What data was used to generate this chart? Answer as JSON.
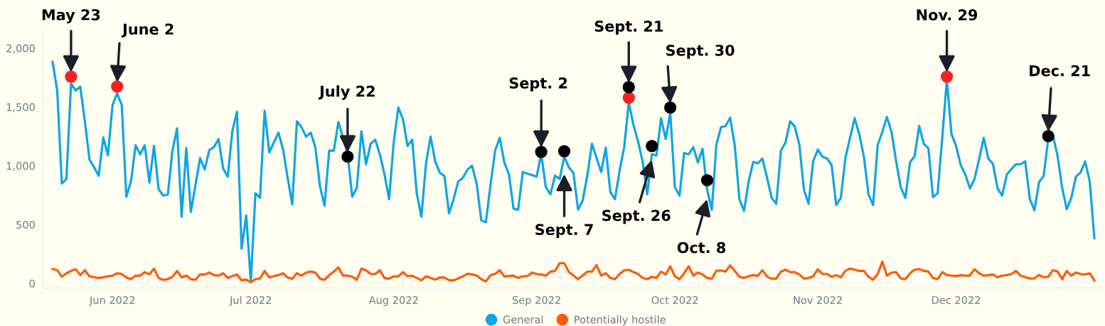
{
  "chart_data": {
    "type": "line",
    "x": [
      "2022-05-19",
      "2022-05-20",
      "2022-05-21",
      "2022-05-22",
      "2022-05-23",
      "2022-05-24",
      "2022-05-25",
      "2022-05-26",
      "2022-05-27",
      "2022-05-28",
      "2022-05-29",
      "2022-05-30",
      "2022-05-31",
      "2022-06-01",
      "2022-06-02",
      "2022-06-03",
      "2022-06-04",
      "2022-06-05",
      "2022-06-06",
      "2022-06-07",
      "2022-06-08",
      "2022-06-09",
      "2022-06-10",
      "2022-06-11",
      "2022-06-12",
      "2022-06-13",
      "2022-06-14",
      "2022-06-15",
      "2022-06-16",
      "2022-06-17",
      "2022-06-18",
      "2022-06-19",
      "2022-06-20",
      "2022-06-21",
      "2022-06-22",
      "2022-06-23",
      "2022-06-24",
      "2022-06-25",
      "2022-06-26",
      "2022-06-27",
      "2022-06-28",
      "2022-06-29",
      "2022-06-30",
      "2022-07-01",
      "2022-07-02",
      "2022-07-03",
      "2022-07-04",
      "2022-07-05",
      "2022-07-06",
      "2022-07-07",
      "2022-07-08",
      "2022-07-09",
      "2022-07-10",
      "2022-07-11",
      "2022-07-12",
      "2022-07-13",
      "2022-07-14",
      "2022-07-15",
      "2022-07-16",
      "2022-07-17",
      "2022-07-18",
      "2022-07-19",
      "2022-07-20",
      "2022-07-21",
      "2022-07-22",
      "2022-07-23",
      "2022-07-24",
      "2022-07-25",
      "2022-07-26",
      "2022-07-27",
      "2022-07-28",
      "2022-07-29",
      "2022-07-30",
      "2022-07-31",
      "2022-08-01",
      "2022-08-02",
      "2022-08-03",
      "2022-08-04",
      "2022-08-05",
      "2022-08-06",
      "2022-08-07",
      "2022-08-08",
      "2022-08-09",
      "2022-08-10",
      "2022-08-11",
      "2022-08-12",
      "2022-08-13",
      "2022-08-14",
      "2022-08-15",
      "2022-08-16",
      "2022-08-17",
      "2022-08-18",
      "2022-08-19",
      "2022-08-20",
      "2022-08-21",
      "2022-08-22",
      "2022-08-23",
      "2022-08-24",
      "2022-08-25",
      "2022-08-26",
      "2022-08-27",
      "2022-08-28",
      "2022-08-29",
      "2022-08-30",
      "2022-08-31",
      "2022-09-01",
      "2022-09-02",
      "2022-09-03",
      "2022-09-04",
      "2022-09-05",
      "2022-09-06",
      "2022-09-07",
      "2022-09-08",
      "2022-09-09",
      "2022-09-10",
      "2022-09-11",
      "2022-09-12",
      "2022-09-13",
      "2022-09-14",
      "2022-09-15",
      "2022-09-16",
      "2022-09-17",
      "2022-09-18",
      "2022-09-19",
      "2022-09-20",
      "2022-09-21",
      "2022-09-22",
      "2022-09-23",
      "2022-09-24",
      "2022-09-25",
      "2022-09-26",
      "2022-09-27",
      "2022-09-28",
      "2022-09-29",
      "2022-09-30",
      "2022-10-01",
      "2022-10-02",
      "2022-10-03",
      "2022-10-04",
      "2022-10-05",
      "2022-10-06",
      "2022-10-07",
      "2022-10-08",
      "2022-10-09",
      "2022-10-10",
      "2022-10-11",
      "2022-10-12",
      "2022-10-13",
      "2022-10-14",
      "2022-10-15",
      "2022-10-16",
      "2022-10-17",
      "2022-10-18",
      "2022-10-19",
      "2022-10-20",
      "2022-10-21",
      "2022-10-22",
      "2022-10-23",
      "2022-10-24",
      "2022-10-25",
      "2022-10-26",
      "2022-10-27",
      "2022-10-28",
      "2022-10-29",
      "2022-10-30",
      "2022-10-31",
      "2022-11-01",
      "2022-11-02",
      "2022-11-03",
      "2022-11-04",
      "2022-11-05",
      "2022-11-06",
      "2022-11-07",
      "2022-11-08",
      "2022-11-09",
      "2022-11-10",
      "2022-11-11",
      "2022-11-12",
      "2022-11-13",
      "2022-11-14",
      "2022-11-15",
      "2022-11-16",
      "2022-11-17",
      "2022-11-18",
      "2022-11-19",
      "2022-11-20",
      "2022-11-21",
      "2022-11-22",
      "2022-11-23",
      "2022-11-24",
      "2022-11-25",
      "2022-11-26",
      "2022-11-27",
      "2022-11-28",
      "2022-11-29",
      "2022-11-30",
      "2022-12-01",
      "2022-12-02",
      "2022-12-03",
      "2022-12-04",
      "2022-12-05",
      "2022-12-06",
      "2022-12-07",
      "2022-12-08",
      "2022-12-09",
      "2022-12-10",
      "2022-12-11",
      "2022-12-12",
      "2022-12-13",
      "2022-12-14",
      "2022-12-15",
      "2022-12-16",
      "2022-12-17",
      "2022-12-18",
      "2022-12-19",
      "2022-12-20",
      "2022-12-21",
      "2022-12-22",
      "2022-12-23",
      "2022-12-24",
      "2022-12-25",
      "2022-12-26",
      "2022-12-27",
      "2022-12-28",
      "2022-12-29",
      "2022-12-30",
      "2022-12-31"
    ],
    "series": [
      {
        "name": "General",
        "color": "#0ea5e6",
        "values": [
          1884,
          1640,
          849,
          887,
          1700,
          1640,
          1673,
          1378,
          1053,
          987,
          915,
          1240,
          1090,
          1517,
          1615,
          1517,
          737,
          867,
          1174,
          1098,
          1174,
          857,
          1170,
          800,
          746,
          756,
          1128,
          1318,
          566,
          1150,
          608,
          837,
          1066,
          969,
          1134,
          1158,
          1228,
          977,
          907,
          1298,
          1459,
          295,
          578,
          14,
          766,
          728,
          1469,
          1114,
          1198,
          1282,
          1138,
          897,
          670,
          1378,
          1328,
          1248,
          1282,
          1158,
          827,
          662,
          1128,
          1128,
          1372,
          1240,
          1098,
          737,
          813,
          1294,
          1013,
          1188,
          1222,
          1098,
          927,
          716,
          1198,
          1495,
          1398,
          1168,
          1222,
          766,
          566,
          1017,
          1248,
          1037,
          941,
          913,
          596,
          716,
          867,
          897,
          967,
          1001,
          847,
          536,
          520,
          837,
          1128,
          1238,
          1028,
          927,
          636,
          626,
          947,
          933,
          921,
          907,
          1100,
          817,
          757,
          917,
          887,
          1078,
          987,
          937,
          626,
          706,
          917,
          1188,
          1068,
          947,
          1154,
          777,
          716,
          957,
          1158,
          1540,
          1349,
          1208,
          1037,
          757,
          1098,
          1088,
          1403,
          1228,
          1450,
          817,
          746,
          1108,
          1098,
          1158,
          1028,
          1144,
          796,
          626,
          1178,
          1328,
          1338,
          1409,
          1168,
          716,
          616,
          867,
          1033,
          1021,
          1061,
          897,
          727,
          676,
          1128,
          1198,
          1378,
          1334,
          1178,
          796,
          676,
          1037,
          1138,
          1078,
          1061,
          1007,
          666,
          727,
          1068,
          1238,
          1405,
          1268,
          1078,
          757,
          666,
          1178,
          1288,
          1415,
          1288,
          1037,
          817,
          727,
          1028,
          1082,
          1338,
          1188,
          1148,
          733,
          766,
          1238,
          1730,
          1272,
          1168,
          1007,
          927,
          807,
          887,
          1058,
          1238,
          1061,
          1017,
          807,
          746,
          927,
          971,
          1013,
          1013,
          1037,
          716,
          622,
          861,
          913,
          1228,
          1258,
          1088,
          817,
          630,
          727,
          907,
          943,
          1037,
          867,
          385
        ]
      },
      {
        "name": "Potentially hostile",
        "color": "#ff5a0a",
        "values": [
          124,
          112,
          56,
          86,
          106,
          120,
          70,
          112,
          60,
          53,
          46,
          53,
          60,
          66,
          86,
          80,
          50,
          36,
          66,
          66,
          96,
          76,
          126,
          46,
          30,
          36,
          56,
          106,
          50,
          66,
          36,
          30,
          76,
          76,
          92,
          72,
          66,
          86,
          46,
          62,
          76,
          26,
          32,
          10,
          36,
          42,
          106,
          50,
          62,
          70,
          86,
          50,
          40,
          86,
          66,
          92,
          100,
          92,
          40,
          30,
          70,
          100,
          136,
          66,
          66,
          56,
          30,
          126,
          112,
          80,
          80,
          112,
          46,
          40,
          60,
          60,
          96,
          60,
          66,
          46,
          26,
          60,
          46,
          32,
          50,
          50,
          26,
          26,
          42,
          60,
          82,
          76,
          66,
          36,
          16,
          70,
          80,
          112,
          60,
          62,
          66,
          46,
          60,
          62,
          92,
          80,
          76,
          66,
          100,
          106,
          172,
          172,
          96,
          66,
          36,
          66,
          100,
          100,
          156,
          66,
          86,
          46,
          36,
          80,
          110,
          116,
          96,
          80,
          46,
          36,
          56,
          46,
          100,
          76,
          146,
          60,
          36,
          86,
          146,
          66,
          92,
          76,
          46,
          40,
          106,
          110,
          100,
          152,
          106,
          56,
          46,
          60,
          70,
          66,
          112,
          56,
          40,
          40,
          100,
          116,
          96,
          96,
          76,
          40,
          46,
          60,
          120,
          80,
          80,
          56,
          70,
          50,
          106,
          126,
          116,
          106,
          106,
          56,
          30,
          80,
          186,
          66,
          92,
          96,
          42,
          36,
          86,
          116,
          122,
          106,
          100,
          46,
          36,
          96,
          72,
          66,
          62,
          70,
          66,
          66,
          120,
          86,
          66,
          70,
          76,
          52,
          66,
          70,
          80,
          106,
          66,
          52,
          42,
          42,
          72,
          52,
          56,
          112,
          102,
          36,
          106,
          66,
          92,
          80,
          76,
          86,
          26
        ]
      },
      {
        "type": "scatter",
        "color": "#ff1e1e",
        "marker": "circle",
        "x": [
          "2022-05-23",
          "2022-06-02",
          "2022-09-21",
          "2022-11-29"
        ],
        "values": [
          1758,
          1674,
          1579,
          1758
        ]
      },
      {
        "type": "scatter",
        "color": "#000000",
        "marker": "circle",
        "x": [
          "2022-07-22",
          "2022-09-02",
          "2022-09-07",
          "2022-09-21",
          "2022-09-26",
          "2022-09-30",
          "2022-10-08",
          "2022-12-21"
        ],
        "values": [
          1078,
          1118,
          1124,
          1669,
          1168,
          1495,
          877,
          1252
        ]
      }
    ],
    "xlim": [
      "2022-05-17",
      "2023-01-02"
    ],
    "xticks": [
      {
        "value": "2022-06-01",
        "label": "Jun 2022"
      },
      {
        "value": "2022-07-01",
        "label": "Jul 2022"
      },
      {
        "value": "2022-08-01",
        "label": "Aug 2022"
      },
      {
        "value": "2022-09-01",
        "label": "Sep 2022"
      },
      {
        "value": "2022-10-01",
        "label": "Oct 2022"
      },
      {
        "value": "2022-11-01",
        "label": "Nov 2022"
      },
      {
        "value": "2022-12-01",
        "label": "Dec 2022"
      }
    ],
    "ylim": [
      -40,
      2150
    ],
    "yticks": [
      0,
      500,
      {
        "value": 1000,
        "label": "1,000"
      },
      {
        "value": 1500,
        "label": "1,500"
      },
      {
        "value": 2000,
        "label": "2,000"
      }
    ],
    "legend": "bottom",
    "annotations": [
      {
        "text": "May 23",
        "x": "2022-05-23",
        "y": 1795
      },
      {
        "text": "June 2",
        "x": "2022-06-02",
        "y": 1710
      },
      {
        "text": "July 22",
        "x": "2022-07-22",
        "y": 1115
      },
      {
        "text": "Sept. 2",
        "x": "2022-09-02",
        "y": 1155
      },
      {
        "text": "Sept. 7",
        "x": "2022-09-07",
        "y": 930
      },
      {
        "text": "Sept. 21",
        "x": "2022-09-21",
        "y": 1705
      },
      {
        "text": "Sept. 26",
        "x": "2022-09-26",
        "y": 1050
      },
      {
        "text": "Sept. 30",
        "x": "2022-09-30",
        "y": 1530
      },
      {
        "text": "Oct. 8",
        "x": "2022-10-08",
        "y": 716
      },
      {
        "text": "Nov. 29",
        "x": "2022-11-29",
        "y": 1795
      },
      {
        "text": "Dec. 21",
        "x": "2022-12-21",
        "y": 1290
      }
    ]
  }
}
